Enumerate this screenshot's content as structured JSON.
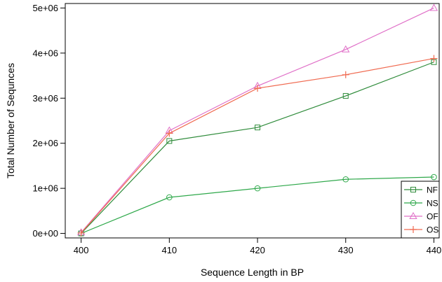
{
  "chart_data": {
    "type": "line",
    "xlabel": "Sequence Length in BP",
    "ylabel": "Total Number of Sequnces",
    "x": [
      400,
      410,
      420,
      430,
      440
    ],
    "xticks": [
      "400",
      "410",
      "420",
      "430",
      "440"
    ],
    "yticks": [
      0,
      1000000,
      2000000,
      3000000,
      4000000,
      5000000
    ],
    "ytick_labels": [
      "0e+00",
      "1e+06",
      "2e+06",
      "3e+06",
      "4e+06",
      "5e+06"
    ],
    "xlim": [
      398.2,
      440.6
    ],
    "ylim": [
      -100000,
      5100000
    ],
    "grid": false,
    "legend_position": "bottom-right",
    "series": [
      {
        "name": "NF",
        "marker": "square",
        "color": "#2e8b3a",
        "values": [
          0,
          2050000,
          2350000,
          3050000,
          3800000
        ]
      },
      {
        "name": "NS",
        "marker": "circle",
        "color": "#2ea84a",
        "values": [
          0,
          800000,
          1000000,
          1200000,
          1250000
        ]
      },
      {
        "name": "OF",
        "marker": "triangle",
        "color": "#e070c8",
        "values": [
          20000,
          2280000,
          3270000,
          4080000,
          5000000
        ]
      },
      {
        "name": "OS",
        "marker": "plus",
        "color": "#f06a50",
        "values": [
          10000,
          2220000,
          3220000,
          3520000,
          3880000
        ]
      }
    ]
  }
}
